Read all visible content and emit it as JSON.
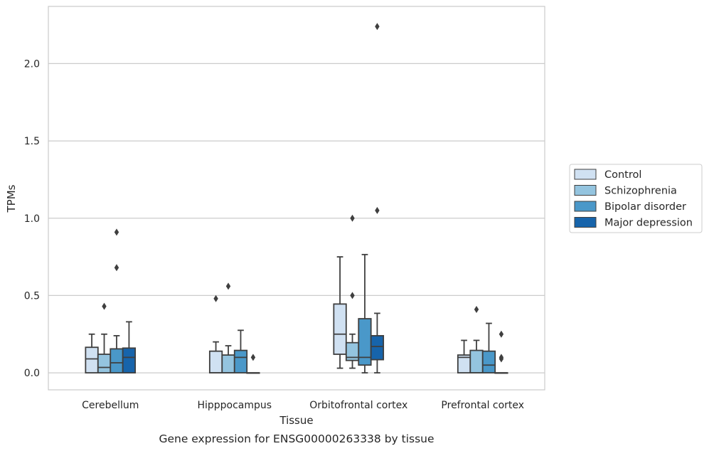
{
  "chart_data": {
    "type": "boxplot",
    "caption": "Gene expression for ENSG00000263338 by tissue",
    "xlabel": "Tissue",
    "ylabel": "TPMs",
    "ylim": [
      -0.11,
      2.37
    ],
    "yticks": [
      0.0,
      0.5,
      1.0,
      1.5,
      2.0
    ],
    "ytick_labels": [
      "0.0",
      "0.5",
      "1.0",
      "1.5",
      "2.0"
    ],
    "grid": "horizontal",
    "legend_position": "right",
    "categories": [
      "Cerebellum",
      "Hipppocampus",
      "Orbitofrontal cortex",
      "Prefrontal cortex"
    ],
    "series": [
      {
        "name": "Control",
        "color": "#d0e1f2",
        "boxes": [
          {
            "whislo": 0.0,
            "q1": 0.0,
            "med": 0.09,
            "q3": 0.165,
            "whishi": 0.25,
            "fliers": []
          },
          {
            "whislo": 0.0,
            "q1": 0.0,
            "med": 0.0,
            "q3": 0.14,
            "whishi": 0.2,
            "fliers": [
              0.48
            ]
          },
          {
            "whislo": 0.03,
            "q1": 0.12,
            "med": 0.25,
            "q3": 0.445,
            "whishi": 0.75,
            "fliers": []
          },
          {
            "whislo": 0.0,
            "q1": 0.0,
            "med": 0.1,
            "q3": 0.115,
            "whishi": 0.21,
            "fliers": []
          }
        ]
      },
      {
        "name": "Schizophrenia",
        "color": "#94c4df",
        "boxes": [
          {
            "whislo": 0.0,
            "q1": 0.0,
            "med": 0.035,
            "q3": 0.12,
            "whishi": 0.25,
            "fliers": [
              0.43
            ]
          },
          {
            "whislo": 0.0,
            "q1": 0.0,
            "med": 0.0,
            "q3": 0.115,
            "whishi": 0.175,
            "fliers": [
              0.56
            ]
          },
          {
            "whislo": 0.03,
            "q1": 0.08,
            "med": 0.1,
            "q3": 0.195,
            "whishi": 0.25,
            "fliers": [
              0.5,
              1.0
            ]
          },
          {
            "whislo": 0.0,
            "q1": 0.0,
            "med": 0.0,
            "q3": 0.145,
            "whishi": 0.21,
            "fliers": [
              0.41
            ]
          }
        ]
      },
      {
        "name": "Bipolar disorder",
        "color": "#4a98c9",
        "boxes": [
          {
            "whislo": 0.0,
            "q1": 0.0,
            "med": 0.065,
            "q3": 0.155,
            "whishi": 0.24,
            "fliers": [
              0.68,
              0.91
            ]
          },
          {
            "whislo": 0.0,
            "q1": 0.0,
            "med": 0.1,
            "q3": 0.145,
            "whishi": 0.275,
            "fliers": []
          },
          {
            "whislo": 0.0,
            "q1": 0.05,
            "med": 0.1,
            "q3": 0.35,
            "whishi": 0.765,
            "fliers": []
          },
          {
            "whislo": 0.0,
            "q1": 0.0,
            "med": 0.05,
            "q3": 0.14,
            "whishi": 0.32,
            "fliers": []
          }
        ]
      },
      {
        "name": "Major depression",
        "color": "#1764ab",
        "boxes": [
          {
            "whislo": 0.0,
            "q1": 0.0,
            "med": 0.1,
            "q3": 0.16,
            "whishi": 0.33,
            "fliers": []
          },
          {
            "whislo": 0.0,
            "q1": 0.0,
            "med": 0.0,
            "q3": 0.0,
            "whishi": 0.0,
            "fliers": [
              0.1
            ]
          },
          {
            "whislo": 0.0,
            "q1": 0.085,
            "med": 0.17,
            "q3": 0.24,
            "whishi": 0.385,
            "fliers": [
              1.05,
              2.24
            ]
          },
          {
            "whislo": 0.0,
            "q1": 0.0,
            "med": 0.0,
            "q3": 0.0,
            "whishi": 0.0,
            "fliers": [
              0.09,
              0.1,
              0.25
            ]
          }
        ]
      }
    ]
  }
}
